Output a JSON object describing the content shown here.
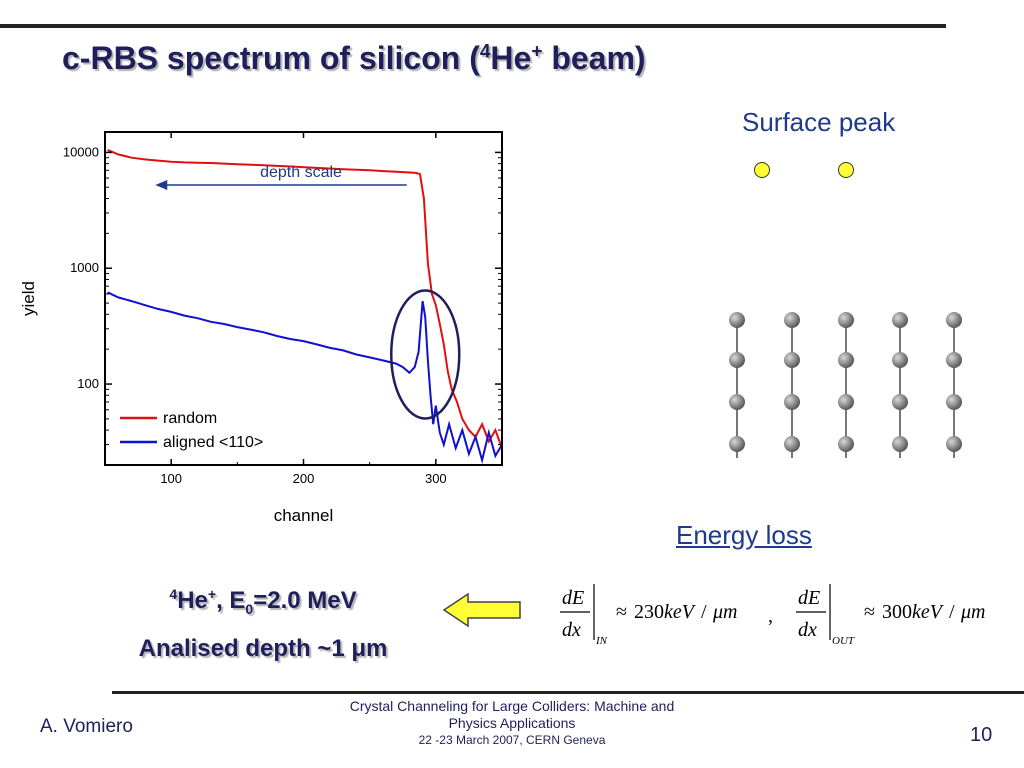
{
  "slide": {
    "title_pre": "c-RBS spectrum of silicon (",
    "title_sup1": "4",
    "title_he": "He",
    "title_sup2": "+",
    "title_post": " beam)",
    "surface_peak_label": "Surface peak",
    "energy_loss_label": "Energy loss",
    "beam_line1_sup": "4",
    "beam_line1_a": "He",
    "beam_line1_sup2": "+",
    "beam_line1_b": ", E",
    "beam_line1_sub": "0",
    "beam_line1_c": "=2.0 MeV",
    "beam_line2": "Analised depth ~1 μm",
    "author": "A. Vomiero",
    "footer_line1": "Crystal Channeling for Large Colliders: Machine and",
    "footer_line2": "Physics Applications",
    "footer_line3": "22 -23  March 2007, CERN Geneva",
    "page_number": "10"
  },
  "formula": {
    "de": "dE",
    "dx": "dx",
    "sub_in": "IN",
    "sub_out": "OUT",
    "approx": "≈",
    "value_in": "230",
    "value_out": "300",
    "unit": "keV",
    "slash": "/",
    "mu_m": "μm",
    "comma": ","
  },
  "colors": {
    "random": "#e01010",
    "aligned": "#1010d0",
    "title": "#1f1f5c",
    "text_blue": "#1f3a8c"
  },
  "chart_data": {
    "type": "line",
    "xlabel": "channel",
    "ylabel": "yield",
    "xlim": [
      50,
      350
    ],
    "ylim": [
      20,
      15000
    ],
    "yscale": "log",
    "xticks": [
      100,
      200,
      300
    ],
    "yticks": [
      100,
      1000,
      10000
    ],
    "annotation": "depth scale",
    "legend_position": "bottom-left",
    "series": [
      {
        "name": "random",
        "color": "#e01010",
        "x": [
          52,
          60,
          70,
          80,
          90,
          100,
          110,
          120,
          130,
          140,
          150,
          170,
          190,
          210,
          230,
          250,
          270,
          280,
          285,
          288,
          291,
          294,
          297,
          300,
          303,
          306,
          309,
          312,
          316,
          320,
          325,
          330,
          335,
          340,
          345,
          350
        ],
        "y": [
          10500,
          9600,
          9000,
          8700,
          8500,
          8300,
          8200,
          8150,
          8100,
          8000,
          7900,
          7750,
          7550,
          7350,
          7150,
          7000,
          6800,
          6700,
          6650,
          6500,
          4000,
          1100,
          600,
          480,
          330,
          220,
          130,
          90,
          70,
          50,
          40,
          35,
          45,
          32,
          40,
          28
        ]
      },
      {
        "name": "aligned  <110>",
        "color": "#1010d0",
        "x": [
          52,
          60,
          70,
          80,
          90,
          100,
          110,
          120,
          130,
          140,
          150,
          160,
          170,
          180,
          190,
          200,
          210,
          220,
          230,
          240,
          250,
          260,
          270,
          275,
          280,
          284,
          287,
          290,
          292,
          294,
          296,
          298,
          300,
          303,
          306,
          310,
          315,
          320,
          325,
          330,
          335,
          340,
          345,
          350
        ],
        "y": [
          620,
          560,
          520,
          480,
          445,
          420,
          390,
          370,
          345,
          330,
          310,
          295,
          280,
          260,
          245,
          235,
          220,
          205,
          195,
          180,
          170,
          160,
          150,
          140,
          125,
          140,
          190,
          520,
          380,
          160,
          80,
          45,
          65,
          38,
          30,
          45,
          28,
          40,
          25,
          35,
          22,
          38,
          24,
          30
        ]
      }
    ]
  }
}
